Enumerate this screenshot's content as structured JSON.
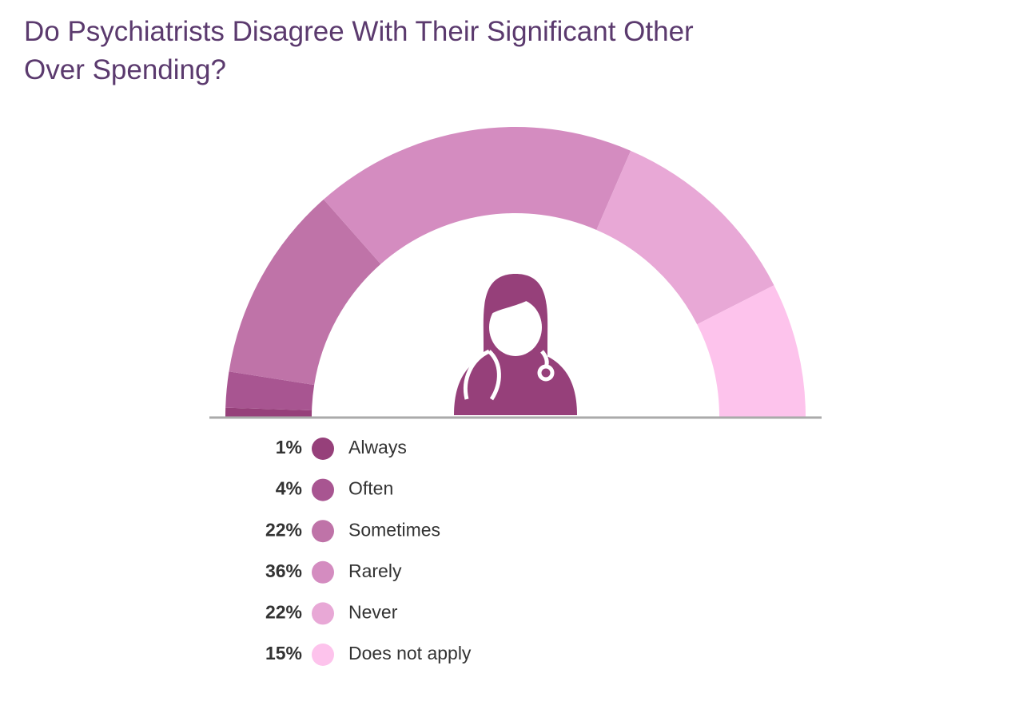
{
  "chart_data": {
    "type": "donut",
    "title": "Do Psychiatrists Disagree With Their Significant Other Over Spending?",
    "categories": [
      "Always",
      "Often",
      "Sometimes",
      "Rarely",
      "Never",
      "Does not apply"
    ],
    "values": [
      1,
      4,
      22,
      36,
      22,
      15
    ],
    "value_labels": [
      "1%",
      "4%",
      "22%",
      "36%",
      "22%",
      "15%"
    ],
    "colors": [
      "#96407a",
      "#a85591",
      "#bf73a8",
      "#d48cc0",
      "#e8a8d6",
      "#fdc3ec"
    ]
  }
}
